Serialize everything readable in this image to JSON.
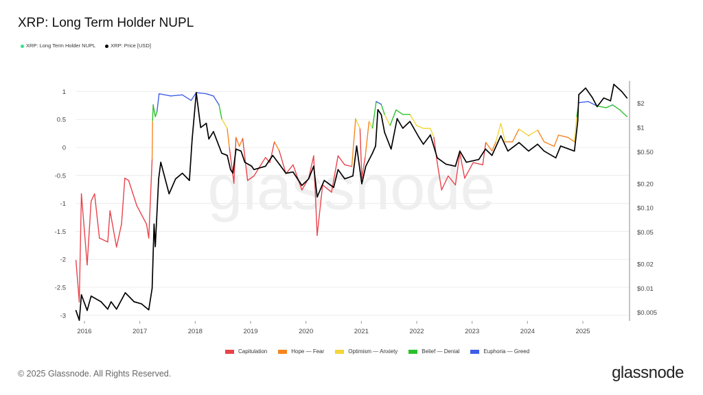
{
  "title": "XRP: Long Term Holder NUPL",
  "legend_top": [
    {
      "label": "XRP: Long Term Holder NUPL",
      "color": "#2ee68a"
    },
    {
      "label": "XRP: Price [USD]",
      "color": "#000000"
    }
  ],
  "footer": {
    "copyright": "© 2025 Glassnode. All Rights Reserved.",
    "logo": "glassnode",
    "watermark": "glassnode"
  },
  "chart_data": {
    "type": "line",
    "title": "XRP: Long Term Holder NUPL",
    "x_ticks": [
      "2016",
      "2017",
      "2018",
      "2019",
      "2020",
      "2021",
      "2022",
      "2023",
      "2024",
      "2025"
    ],
    "y_left": {
      "ticks": [
        "1",
        "0.5",
        "0",
        "-0.5",
        "-1",
        "-1.5",
        "-2",
        "-2.5",
        "-3"
      ],
      "range": [
        -3.05,
        1.1
      ]
    },
    "y_right": {
      "scale": "log",
      "ticks": [
        {
          "v": 2,
          "label": "$2"
        },
        {
          "v": 1,
          "label": "$1"
        },
        {
          "v": 0.5,
          "label": "$0.50"
        },
        {
          "v": 0.2,
          "label": "$0.20"
        },
        {
          "v": 0.1,
          "label": "$0.10"
        },
        {
          "v": 0.05,
          "label": "$0.05"
        },
        {
          "v": 0.02,
          "label": "$0.02"
        },
        {
          "v": 0.01,
          "label": "$0.01"
        },
        {
          "v": 0.005,
          "label": "$0.005"
        }
      ]
    },
    "grid": true,
    "zones": [
      {
        "name": "Capitulation",
        "color": "#e8434b",
        "max": 0
      },
      {
        "name": "Hope — Fear",
        "color": "#f5861f",
        "max": 0.25
      },
      {
        "name": "Optimism — Anxiety",
        "color": "#f2d63a",
        "max": 0.5
      },
      {
        "name": "Belief — Denial",
        "color": "#2bc12b",
        "max": 0.75
      },
      {
        "name": "Euphoria — Greed",
        "color": "#3f5fe6",
        "max": 10
      }
    ],
    "legend_placement": "bottom",
    "series": [
      {
        "name": "XRP: Long Term Holder NUPL",
        "axis": "left",
        "points": [
          [
            "2015-11-06",
            -2.02
          ],
          [
            "2015-11-28",
            -2.76
          ],
          [
            "2015-12-12",
            -0.83
          ],
          [
            "2016-01-19",
            -2.1
          ],
          [
            "2016-02-14",
            -0.96
          ],
          [
            "2016-03-08",
            -0.83
          ],
          [
            "2016-04-09",
            -1.62
          ],
          [
            "2016-06-03",
            -1.69
          ],
          [
            "2016-06-18",
            -1.13
          ],
          [
            "2016-07-31",
            -1.78
          ],
          [
            "2016-09-02",
            -1.37
          ],
          [
            "2016-09-24",
            -0.55
          ],
          [
            "2016-10-19",
            -0.59
          ],
          [
            "2016-12-12",
            -1.04
          ],
          [
            "2017-02-14",
            -1.37
          ],
          [
            "2017-03-01",
            -1.62
          ],
          [
            "2017-03-23",
            -0.22
          ],
          [
            "2017-03-26",
            0.47
          ],
          [
            "2017-03-30",
            0.76
          ],
          [
            "2017-04-13",
            0.55
          ],
          [
            "2017-04-24",
            0.64
          ],
          [
            "2017-05-08",
            0.96
          ],
          [
            "2017-07-24",
            0.92
          ],
          [
            "2017-10-08",
            0.94
          ],
          [
            "2017-12-05",
            0.84
          ],
          [
            "2018-01-08",
            0.98
          ],
          [
            "2018-03-15",
            0.96
          ],
          [
            "2018-05-01",
            0.92
          ],
          [
            "2018-06-07",
            0.76
          ],
          [
            "2018-06-25",
            0.51
          ],
          [
            "2018-07-31",
            0.34
          ],
          [
            "2018-08-15",
            -0.02
          ],
          [
            "2018-09-13",
            -0.64
          ],
          [
            "2018-09-27",
            0.18
          ],
          [
            "2018-10-19",
            0.02
          ],
          [
            "2018-11-10",
            0.16
          ],
          [
            "2018-12-12",
            -0.59
          ],
          [
            "2019-01-23",
            -0.51
          ],
          [
            "2019-04-09",
            -0.18
          ],
          [
            "2019-05-08",
            -0.27
          ],
          [
            "2019-06-07",
            0.1
          ],
          [
            "2019-07-09",
            -0.06
          ],
          [
            "2019-08-22",
            -0.47
          ],
          [
            "2019-10-08",
            -0.31
          ],
          [
            "2019-12-05",
            -0.76
          ],
          [
            "2020-01-19",
            -0.55
          ],
          [
            "2020-02-21",
            -0.15
          ],
          [
            "2020-03-15",
            -1.57
          ],
          [
            "2020-04-20",
            -0.67
          ],
          [
            "2020-06-18",
            -0.8
          ],
          [
            "2020-07-31",
            -0.15
          ],
          [
            "2020-09-13",
            -0.31
          ],
          [
            "2020-10-30",
            -0.34
          ],
          [
            "2020-11-24",
            0.51
          ],
          [
            "2020-12-23",
            0.34
          ],
          [
            "2021-01-04",
            -0.55
          ],
          [
            "2021-01-26",
            -0.18
          ],
          [
            "2021-02-21",
            0.47
          ],
          [
            "2021-03-15",
            0.34
          ],
          [
            "2021-04-09",
            0.82
          ],
          [
            "2021-05-12",
            0.77
          ],
          [
            "2021-06-03",
            0.59
          ],
          [
            "2021-07-09",
            0.39
          ],
          [
            "2021-08-18",
            0.67
          ],
          [
            "2021-10-01",
            0.59
          ],
          [
            "2021-11-17",
            0.59
          ],
          [
            "2022-01-01",
            0.39
          ],
          [
            "2022-02-14",
            0.34
          ],
          [
            "2022-04-01",
            0.34
          ],
          [
            "2022-04-24",
            0.18
          ],
          [
            "2022-05-16",
            -0.27
          ],
          [
            "2022-06-14",
            -0.76
          ],
          [
            "2022-07-27",
            -0.51
          ],
          [
            "2022-09-13",
            -0.67
          ],
          [
            "2022-10-12",
            -0.1
          ],
          [
            "2022-11-13",
            -0.55
          ],
          [
            "2023-01-08",
            -0.27
          ],
          [
            "2023-03-12",
            -0.31
          ],
          [
            "2023-04-01",
            0.09
          ],
          [
            "2023-05-12",
            -0.06
          ],
          [
            "2023-06-07",
            0.1
          ],
          [
            "2023-07-09",
            0.43
          ],
          [
            "2023-08-07",
            0.1
          ],
          [
            "2023-09-24",
            0.1
          ],
          [
            "2023-11-06",
            0.33
          ],
          [
            "2024-01-08",
            0.21
          ],
          [
            "2024-03-08",
            0.31
          ],
          [
            "2024-04-20",
            0.1
          ],
          [
            "2024-06-25",
            0.02
          ],
          [
            "2024-07-24",
            0.22
          ],
          [
            "2024-09-24",
            0.18
          ],
          [
            "2024-11-06",
            0.1
          ],
          [
            "2024-11-21",
            0.55
          ],
          [
            "2024-12-05",
            0.8
          ],
          [
            "2025-02-06",
            0.82
          ],
          [
            "2025-04-05",
            0.74
          ],
          [
            "2025-06-03",
            0.71
          ],
          [
            "2025-07-16",
            0.76
          ],
          [
            "2025-09-02",
            0.67
          ],
          [
            "2025-10-19",
            0.55
          ]
        ]
      },
      {
        "name": "XRP: Price [USD]",
        "axis": "right",
        "color": "#000000",
        "points": [
          [
            "2015-11-06",
            0.0053
          ],
          [
            "2015-11-28",
            0.004
          ],
          [
            "2015-12-12",
            0.0083
          ],
          [
            "2016-01-19",
            0.0053
          ],
          [
            "2016-02-14",
            0.008
          ],
          [
            "2016-04-20",
            0.0068
          ],
          [
            "2016-06-03",
            0.0055
          ],
          [
            "2016-06-25",
            0.0068
          ],
          [
            "2016-07-31",
            0.0055
          ],
          [
            "2016-09-27",
            0.0088
          ],
          [
            "2016-11-24",
            0.0068
          ],
          [
            "2017-01-12",
            0.0064
          ],
          [
            "2017-03-01",
            0.0054
          ],
          [
            "2017-03-23",
            0.01
          ],
          [
            "2017-04-05",
            0.063
          ],
          [
            "2017-04-13",
            0.033
          ],
          [
            "2017-05-05",
            0.23
          ],
          [
            "2017-05-19",
            0.37
          ],
          [
            "2017-07-13",
            0.15
          ],
          [
            "2017-08-25",
            0.23
          ],
          [
            "2017-10-08",
            0.27
          ],
          [
            "2017-11-24",
            0.22
          ],
          [
            "2017-12-12",
            0.72
          ],
          [
            "2018-01-08",
            2.72
          ],
          [
            "2018-02-06",
            1.0
          ],
          [
            "2018-03-15",
            1.13
          ],
          [
            "2018-04-01",
            0.72
          ],
          [
            "2018-05-01",
            0.89
          ],
          [
            "2018-06-25",
            0.48
          ],
          [
            "2018-07-31",
            0.45
          ],
          [
            "2018-08-22",
            0.3
          ],
          [
            "2018-09-06",
            0.27
          ],
          [
            "2018-09-27",
            0.54
          ],
          [
            "2018-10-30",
            0.51
          ],
          [
            "2018-11-24",
            0.37
          ],
          [
            "2019-01-08",
            0.33
          ],
          [
            "2019-01-23",
            0.3
          ],
          [
            "2019-04-09",
            0.33
          ],
          [
            "2019-05-27",
            0.45
          ],
          [
            "2019-07-09",
            0.35
          ],
          [
            "2019-08-22",
            0.27
          ],
          [
            "2019-10-08",
            0.28
          ],
          [
            "2019-12-05",
            0.19
          ],
          [
            "2020-01-19",
            0.23
          ],
          [
            "2020-02-21",
            0.33
          ],
          [
            "2020-03-15",
            0.137
          ],
          [
            "2020-05-01",
            0.22
          ],
          [
            "2020-07-02",
            0.18
          ],
          [
            "2020-07-31",
            0.3
          ],
          [
            "2020-09-13",
            0.23
          ],
          [
            "2020-11-06",
            0.25
          ],
          [
            "2020-12-01",
            0.59
          ],
          [
            "2021-01-04",
            0.2
          ],
          [
            "2021-01-30",
            0.33
          ],
          [
            "2021-03-15",
            0.48
          ],
          [
            "2021-04-05",
            0.59
          ],
          [
            "2021-04-20",
            1.67
          ],
          [
            "2021-05-12",
            1.45
          ],
          [
            "2021-06-03",
            0.87
          ],
          [
            "2021-07-16",
            0.54
          ],
          [
            "2021-08-25",
            1.29
          ],
          [
            "2021-10-01",
            0.98
          ],
          [
            "2021-11-17",
            1.19
          ],
          [
            "2022-01-15",
            0.76
          ],
          [
            "2022-02-14",
            0.62
          ],
          [
            "2022-04-01",
            0.81
          ],
          [
            "2022-05-16",
            0.42
          ],
          [
            "2022-07-13",
            0.35
          ],
          [
            "2022-09-13",
            0.33
          ],
          [
            "2022-10-12",
            0.51
          ],
          [
            "2022-11-24",
            0.37
          ],
          [
            "2023-02-14",
            0.4
          ],
          [
            "2023-03-30",
            0.54
          ],
          [
            "2023-05-12",
            0.45
          ],
          [
            "2023-07-09",
            0.79
          ],
          [
            "2023-08-25",
            0.51
          ],
          [
            "2023-11-06",
            0.65
          ],
          [
            "2024-01-08",
            0.51
          ],
          [
            "2024-03-08",
            0.62
          ],
          [
            "2024-04-20",
            0.51
          ],
          [
            "2024-07-06",
            0.42
          ],
          [
            "2024-08-07",
            0.59
          ],
          [
            "2024-11-06",
            0.51
          ],
          [
            "2024-11-28",
            1.19
          ],
          [
            "2024-12-05",
            2.57
          ],
          [
            "2025-01-19",
            3.1
          ],
          [
            "2025-03-04",
            2.37
          ],
          [
            "2025-04-05",
            1.82
          ],
          [
            "2025-05-19",
            2.33
          ],
          [
            "2025-07-02",
            2.15
          ],
          [
            "2025-07-24",
            3.45
          ],
          [
            "2025-09-13",
            2.83
          ],
          [
            "2025-10-19",
            2.33
          ]
        ]
      }
    ]
  }
}
